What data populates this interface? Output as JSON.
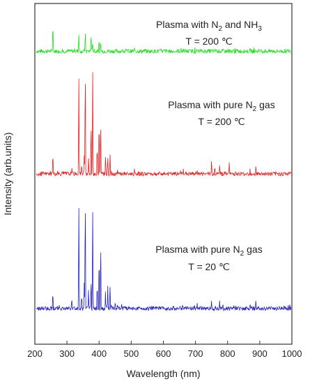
{
  "chart_data": {
    "type": "line",
    "xlabel": "Wavelength (nm)",
    "ylabel": "Intensity (arb.units)",
    "xlim": [
      200,
      1000
    ],
    "xticks": [
      200,
      300,
      400,
      500,
      600,
      700,
      800,
      900,
      1000
    ],
    "y_ticks_labeled": false,
    "grid": false,
    "legend": "none",
    "series": [
      {
        "color": "#22dd22",
        "annotation": {
          "line1": "Plasma with  N",
          "sub1": "2",
          "line1b": " and NH",
          "sub2": "3",
          "line2": "T = 200 ℃"
        },
        "baseline": 0.86,
        "peaks": [
          [
            256,
            0.09
          ],
          [
            337,
            0.05
          ],
          [
            357,
            0.065
          ],
          [
            375,
            0.06
          ],
          [
            380,
            0.03
          ],
          [
            400,
            0.035
          ],
          [
            405,
            0.02
          ]
        ]
      },
      {
        "color": "#dd2222",
        "annotation": {
          "line1": "Plasma with pure N",
          "sub1": "2",
          "line1b": " gas",
          "line2": "T = 200 ℃"
        },
        "baseline": 0.5,
        "peaks": [
          [
            256,
            0.07
          ],
          [
            315,
            0.02
          ],
          [
            337,
            0.28
          ],
          [
            346,
            0.03
          ],
          [
            354,
            0.06
          ],
          [
            357,
            0.36
          ],
          [
            367,
            0.05
          ],
          [
            375,
            0.17
          ],
          [
            380,
            0.34
          ],
          [
            394,
            0.1
          ],
          [
            400,
            0.18
          ],
          [
            405,
            0.17
          ],
          [
            420,
            0.06
          ],
          [
            427,
            0.04
          ],
          [
            434,
            0.07
          ],
          [
            662,
            0.015
          ],
          [
            705,
            0.02
          ],
          [
            750,
            0.04
          ],
          [
            760,
            0.03
          ],
          [
            775,
            0.025
          ],
          [
            805,
            0.03
          ],
          [
            870,
            0.015
          ],
          [
            888,
            0.02
          ]
        ]
      },
      {
        "color": "#2222bb",
        "annotation": {
          "line1": "Plasma with pure N",
          "sub1": "2",
          "line1b": " gas",
          "line2": "T = 20 ℃"
        },
        "baseline": 0.105,
        "peaks": [
          [
            256,
            0.06
          ],
          [
            315,
            0.03
          ],
          [
            337,
            0.3
          ],
          [
            346,
            0.04
          ],
          [
            354,
            0.08
          ],
          [
            357,
            0.37
          ],
          [
            367,
            0.05
          ],
          [
            375,
            0.1
          ],
          [
            380,
            0.32
          ],
          [
            394,
            0.08
          ],
          [
            400,
            0.18
          ],
          [
            405,
            0.22
          ],
          [
            420,
            0.05
          ],
          [
            427,
            0.06
          ],
          [
            434,
            0.07
          ],
          [
            450,
            0.02
          ],
          [
            470,
            0.015
          ],
          [
            660,
            0.015
          ],
          [
            705,
            0.02
          ],
          [
            750,
            0.02
          ],
          [
            775,
            0.025
          ],
          [
            870,
            0.015
          ],
          [
            888,
            0.02
          ]
        ]
      }
    ]
  }
}
